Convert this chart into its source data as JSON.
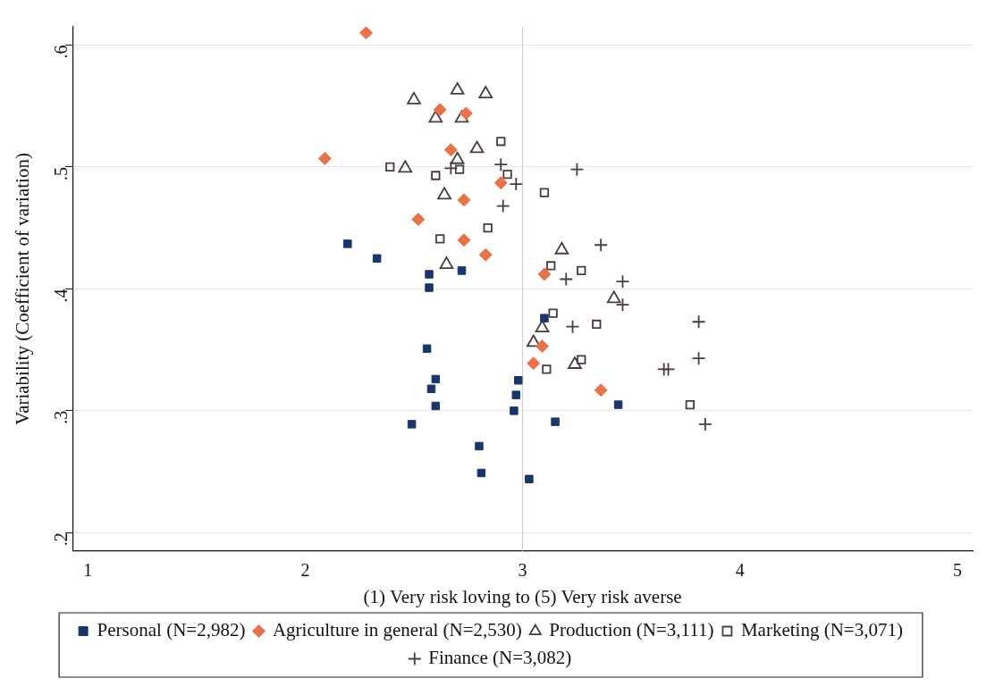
{
  "chart_data": {
    "type": "scatter",
    "xlabel": "(1) Very risk loving to (5) Very risk averse",
    "ylabel": "Variability (Coefficient of variation)",
    "xlim": [
      0.93,
      5.07
    ],
    "xticks": [
      1,
      2,
      3,
      4,
      5
    ],
    "ylim": [
      0.185,
      0.615
    ],
    "yticks": [
      {
        "value": 0.2,
        "label": ".2"
      },
      {
        "value": 0.3,
        "label": ".3"
      },
      {
        "value": 0.4,
        "label": ".4"
      },
      {
        "value": 0.5,
        "label": ".5"
      },
      {
        "value": 0.6,
        "label": ".6"
      }
    ],
    "grid": "y",
    "legend": "bottom",
    "ref_lines": [
      {
        "axis": "x",
        "value": 3,
        "color": "#d0d0d0"
      }
    ],
    "series": [
      {
        "name": "Personal (N=2,982)",
        "color": "#1a3668",
        "marker": "square",
        "x": [
          2.195,
          2.33,
          2.57,
          2.57,
          2.72,
          2.56,
          2.6,
          2.58,
          2.6,
          2.49,
          2.8,
          2.81,
          2.98,
          2.97,
          2.96,
          3.03,
          3.1,
          3.15,
          3.44
        ],
        "values": [
          0.437,
          0.425,
          0.412,
          0.401,
          0.415,
          0.351,
          0.326,
          0.318,
          0.304,
          0.289,
          0.271,
          0.249,
          0.325,
          0.313,
          0.3,
          0.244,
          0.376,
          0.291,
          0.305
        ]
      },
      {
        "name": "Agriculture in general (N=2,530)",
        "color": "#e8734a",
        "marker": "diamond",
        "x": [
          2.28,
          2.09,
          2.62,
          2.74,
          2.67,
          2.73,
          2.52,
          2.73,
          2.83,
          2.9,
          3.1,
          3.09,
          3.05,
          3.36
        ],
        "values": [
          0.61,
          0.507,
          0.547,
          0.544,
          0.514,
          0.473,
          0.457,
          0.44,
          0.428,
          0.487,
          0.412,
          0.353,
          0.339,
          0.317
        ]
      },
      {
        "name": "Production (N=3,111)",
        "color": "#4a3c3c",
        "marker": "triangle",
        "x": [
          2.5,
          2.7,
          2.83,
          2.6,
          2.72,
          2.79,
          2.46,
          2.7,
          2.64,
          2.65,
          3.18,
          3.42,
          3.09,
          3.05,
          3.24
        ],
        "values": [
          0.555,
          0.563,
          0.56,
          0.54,
          0.54,
          0.515,
          0.499,
          0.506,
          0.477,
          0.42,
          0.432,
          0.392,
          0.368,
          0.356,
          0.338
        ]
      },
      {
        "name": "Marketing (N=3,071)",
        "color": "#4a3c3c",
        "marker": "square",
        "x": [
          2.39,
          2.6,
          2.71,
          2.9,
          2.93,
          3.1,
          2.62,
          2.84,
          3.13,
          3.27,
          3.14,
          3.34,
          3.27,
          3.11,
          3.77
        ],
        "values": [
          0.5,
          0.493,
          0.498,
          0.521,
          0.494,
          0.479,
          0.441,
          0.45,
          0.419,
          0.415,
          0.38,
          0.371,
          0.342,
          0.334,
          0.305
        ]
      },
      {
        "name": "Finance (N=3,082)",
        "color": "#4a3c3c",
        "marker": "cross",
        "x": [
          3.25,
          2.9,
          2.67,
          2.97,
          2.91,
          3.36,
          3.2,
          3.46,
          3.46,
          3.23,
          3.81,
          3.81,
          3.65,
          3.67,
          3.84
        ],
        "values": [
          0.498,
          0.502,
          0.499,
          0.486,
          0.468,
          0.436,
          0.408,
          0.406,
          0.387,
          0.369,
          0.373,
          0.343,
          0.334,
          0.334,
          0.289
        ]
      }
    ]
  }
}
